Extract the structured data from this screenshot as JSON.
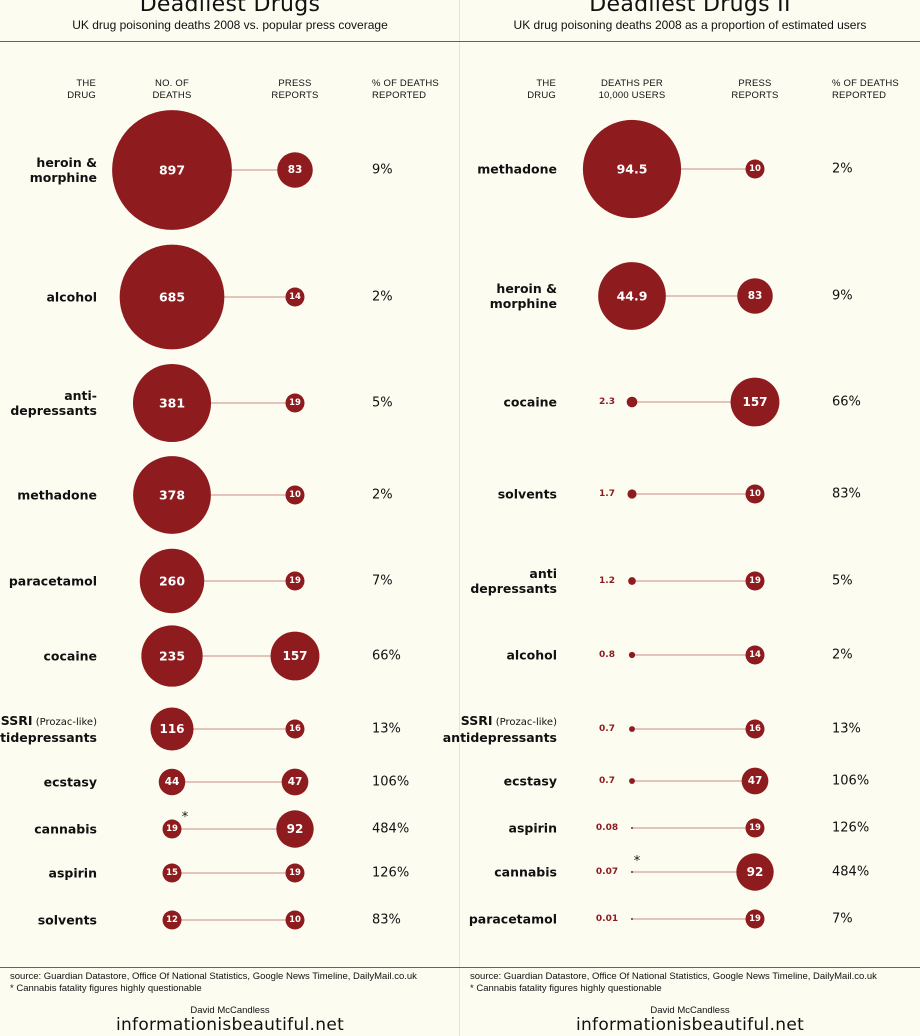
{
  "colors": {
    "accent": "#8e1b1e",
    "line": "#c98a84",
    "background": "#fdfcf1"
  },
  "chart_data": [
    {
      "type": "bubble-comparison",
      "title": "Deadliest Drugs",
      "subtitle": "UK drug poisoning deaths 2008 vs. popular press coverage",
      "headers": {
        "drug": "THE\nDRUG",
        "value": "NO. OF\nDEATHS",
        "press": "PRESS\nREPORTS",
        "pct": "% OF DEATHS\nREPORTED"
      },
      "rows": [
        {
          "drug": "heroin &\nmorphine",
          "value": 897,
          "press": 83,
          "pct": "9%"
        },
        {
          "drug": "alcohol",
          "value": 685,
          "press": 14,
          "pct": "2%"
        },
        {
          "drug": "anti-\ndepressants",
          "value": 381,
          "press": 19,
          "pct": "5%"
        },
        {
          "drug": "methadone",
          "value": 378,
          "press": 10,
          "pct": "2%"
        },
        {
          "drug": "paracetamol",
          "value": 260,
          "press": 19,
          "pct": "7%"
        },
        {
          "drug": "cocaine",
          "value": 235,
          "press": 157,
          "pct": "66%"
        },
        {
          "drug": "SSRI",
          "drug_note": "(Prozac-like)",
          "drug_line2": "antidepressants",
          "value": 116,
          "press": 16,
          "pct": "13%"
        },
        {
          "drug": "ecstasy",
          "value": 44,
          "press": 47,
          "pct": "106%"
        },
        {
          "drug": "cannabis",
          "value": 19,
          "value_mark": "*",
          "press": 92,
          "pct": "484%"
        },
        {
          "drug": "aspirin",
          "value": 15,
          "press": 19,
          "pct": "126%"
        },
        {
          "drug": "solvents",
          "value": 12,
          "press": 10,
          "pct": "83%"
        }
      ],
      "source": "source: Guardian Datastore, Office Of National Statistics, Google News Timeline, DailyMail.co.uk",
      "footnote": "* Cannabis fatality figures highly questionable",
      "credit": "David McCandless",
      "site": "informationisbeautiful.net"
    },
    {
      "type": "bubble-comparison",
      "title": "Deadliest Drugs II",
      "subtitle": "UK drug poisoning deaths 2008 as a proportion of estimated users",
      "headers": {
        "drug": "THE\nDRUG",
        "value": "DEATHS PER\n10,000 USERS",
        "press": "PRESS\nREPORTS",
        "pct": "% OF DEATHS\nREPORTED"
      },
      "rows": [
        {
          "drug": "methadone",
          "value": 94.5,
          "value_label": "94.5",
          "press": 10,
          "pct": "2%"
        },
        {
          "drug": "heroin &\nmorphine",
          "value": 44.9,
          "value_label": "44.9",
          "press": 83,
          "pct": "9%"
        },
        {
          "drug": "cocaine",
          "value": 2.3,
          "value_label": "2.3",
          "press": 157,
          "pct": "66%"
        },
        {
          "drug": "solvents",
          "value": 1.7,
          "value_label": "1.7",
          "press": 10,
          "pct": "83%"
        },
        {
          "drug": "anti\ndepressants",
          "value": 1.2,
          "value_label": "1.2",
          "press": 19,
          "pct": "5%"
        },
        {
          "drug": "alcohol",
          "value": 0.8,
          "value_label": "0.8",
          "press": 14,
          "pct": "2%"
        },
        {
          "drug": "SSRI",
          "drug_note": "(Prozac-like)",
          "drug_line2": "antidepressants",
          "value": 0.7,
          "value_label": "0.7",
          "press": 16,
          "pct": "13%"
        },
        {
          "drug": "ecstasy",
          "value": 0.7,
          "value_label": "0.7",
          "press": 47,
          "pct": "106%"
        },
        {
          "drug": "aspirin",
          "value": 0.08,
          "value_label": "0.08",
          "press": 19,
          "pct": "126%"
        },
        {
          "drug": "cannabis",
          "value": 0.07,
          "value_label": "0.07",
          "value_mark": "*",
          "press": 92,
          "pct": "484%"
        },
        {
          "drug": "paracetamol",
          "value": 0.01,
          "value_label": "0.01",
          "press": 19,
          "pct": "7%"
        }
      ],
      "source": "source: Guardian Datastore, Office Of National Statistics, Google News Timeline, DailyMail.co.uk",
      "footnote": "* Cannabis fatality figures highly questionable",
      "credit": "David McCandless",
      "site": "informationisbeautiful.net"
    }
  ]
}
